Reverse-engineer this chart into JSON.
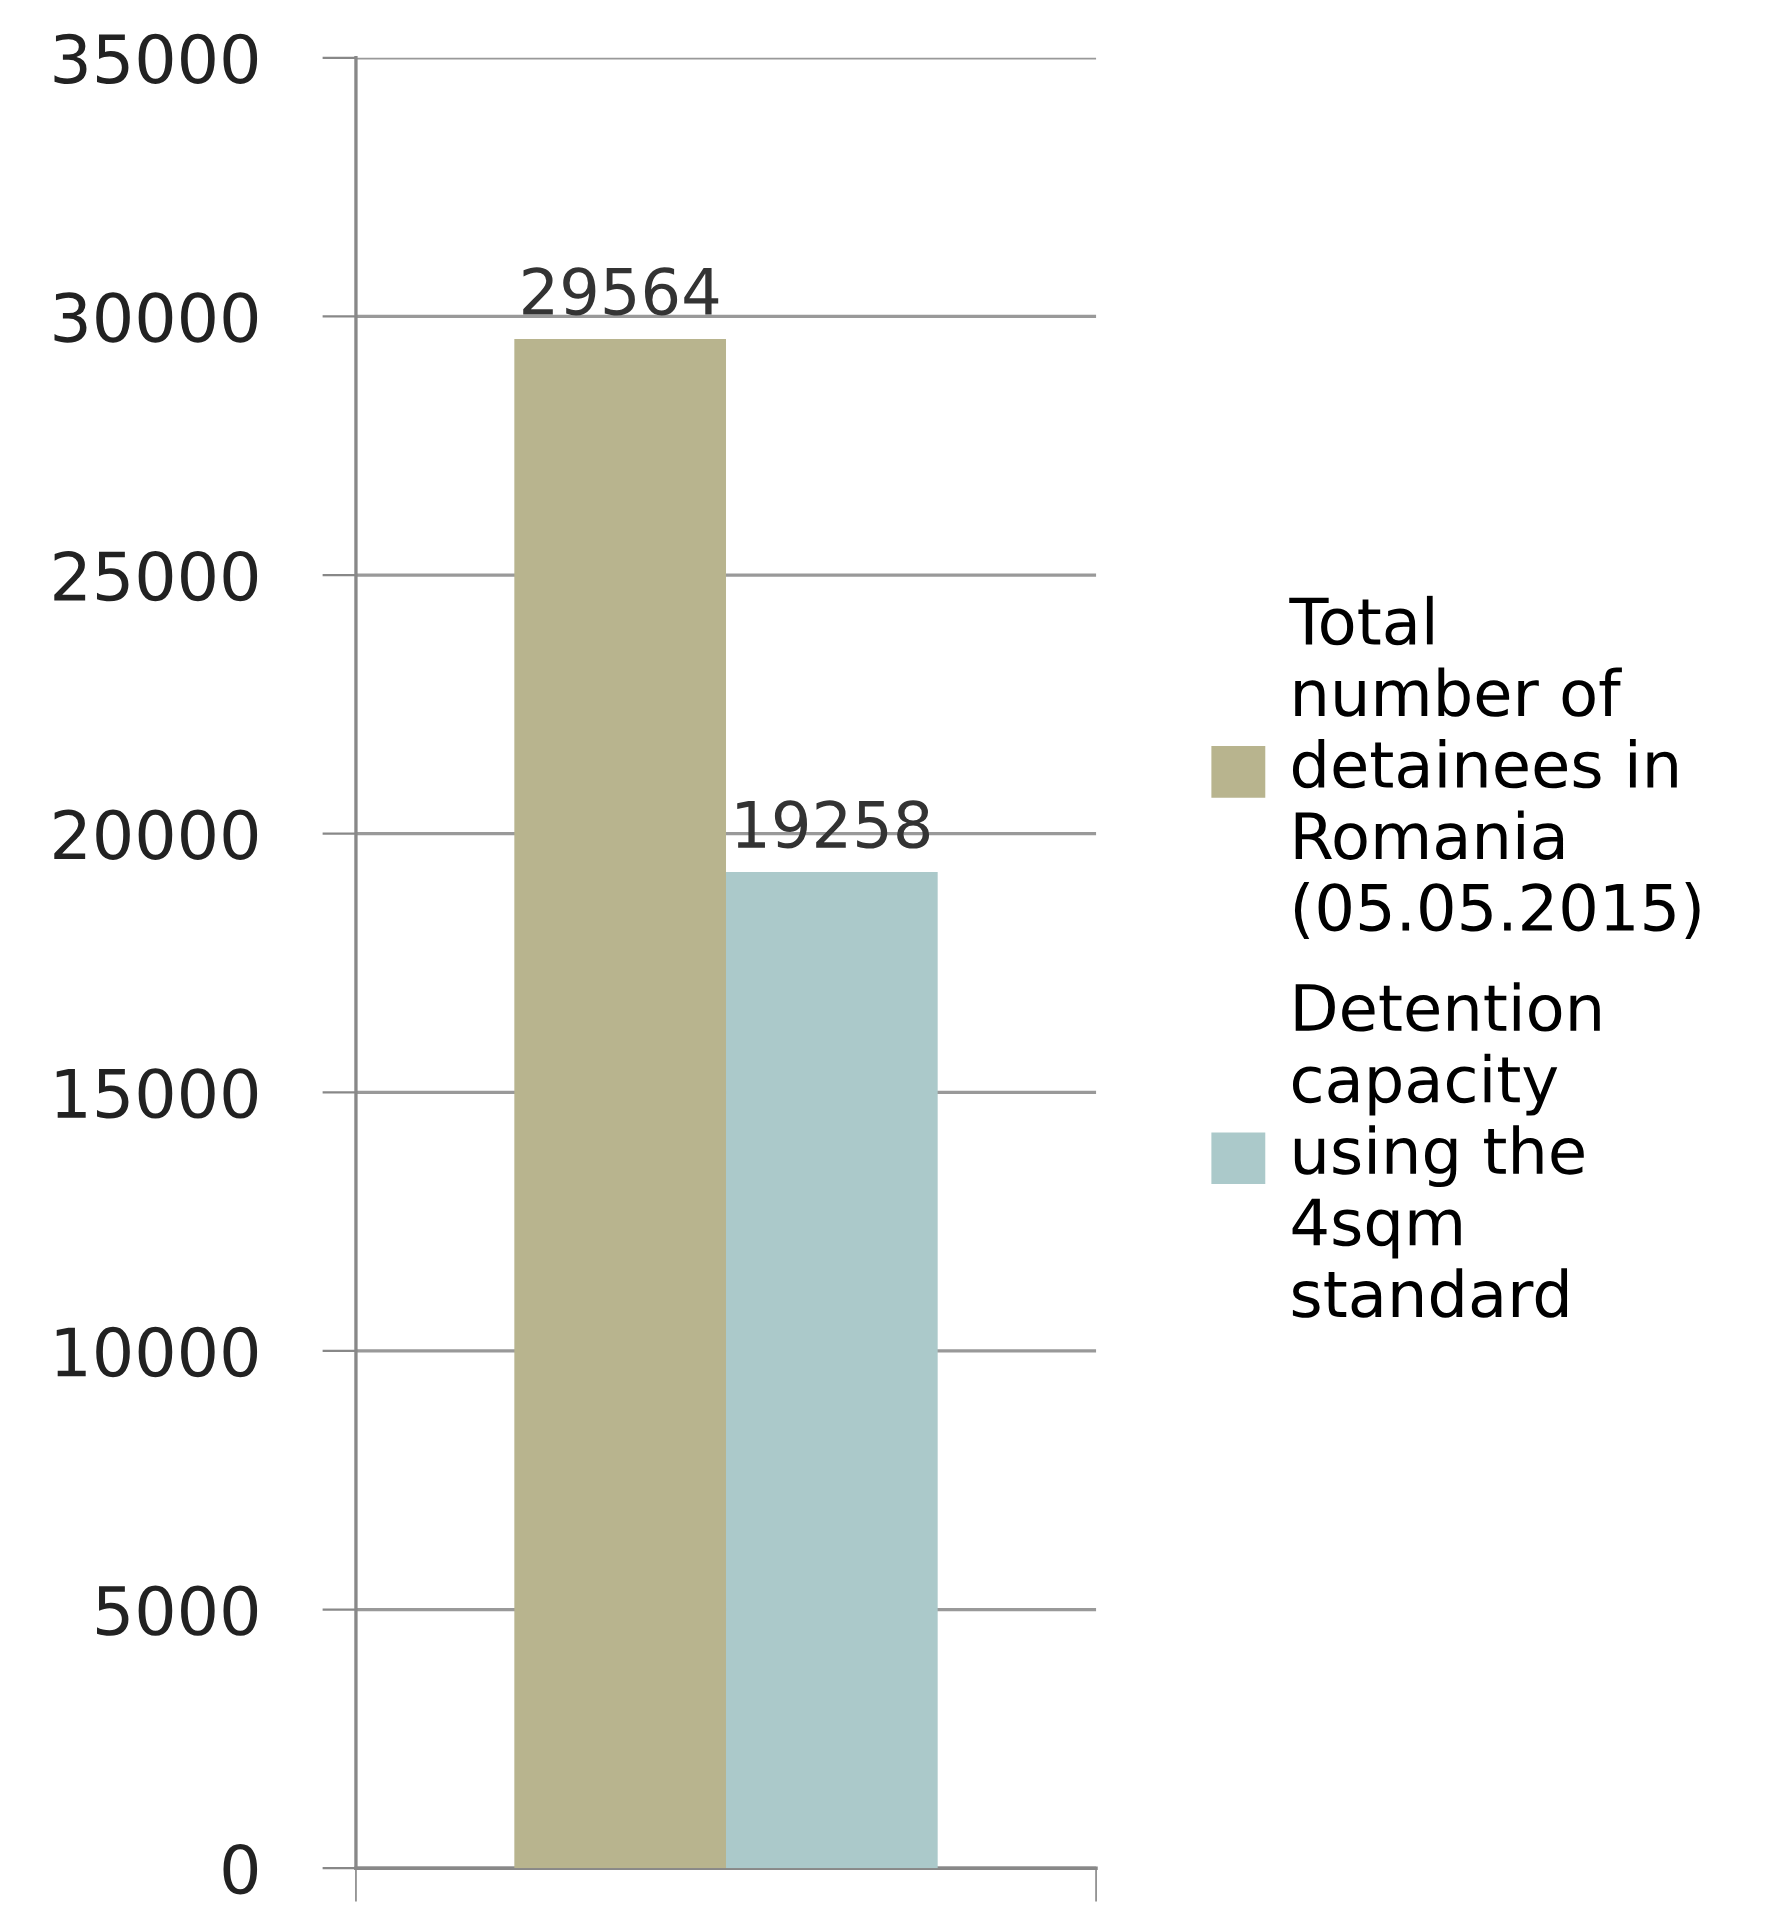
{
  "chart_data": {
    "type": "bar",
    "categories": [
      null
    ],
    "series": [
      {
        "name": "Total\nnumber of\ndetainees in\nRomania\n(05.05.2015)",
        "color": "#b8b48e",
        "values": [
          29564
        ]
      },
      {
        "name": "Detention\ncapacity\nusing the\n4sqm\nstandard",
        "color": "#abc9ca",
        "values": [
          19258
        ]
      }
    ],
    "ylim": [
      0,
      35000
    ],
    "yticks": [
      0,
      5000,
      10000,
      15000,
      20000,
      25000,
      30000,
      35000
    ],
    "grid": "y",
    "legend": "right",
    "data_labels": true
  }
}
